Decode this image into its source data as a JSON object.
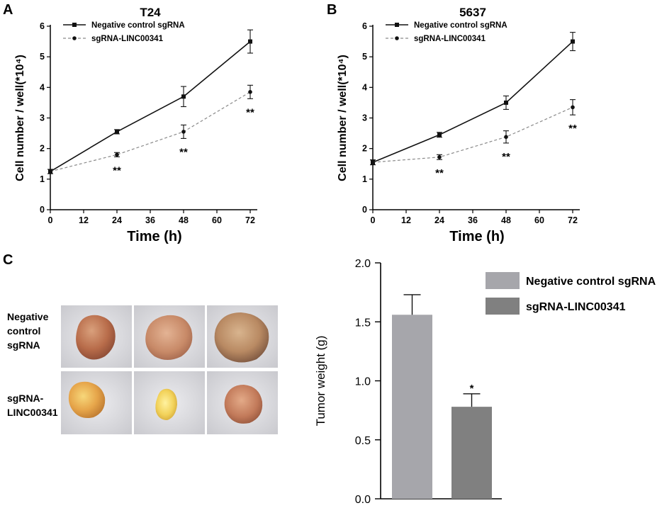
{
  "chart_data": [
    {
      "panel": "A",
      "type": "line",
      "title": "T24",
      "xlabel": "Time (h)",
      "ylabel": "Cell number / well(*10⁴)",
      "x": [
        0,
        24,
        48,
        72
      ],
      "xticks": [
        0,
        12,
        24,
        36,
        48,
        60,
        72
      ],
      "yticks": [
        0,
        1,
        2,
        3,
        4,
        5,
        6
      ],
      "xlim": [
        0,
        72
      ],
      "ylim": [
        0,
        6
      ],
      "series": [
        {
          "name": "Negative control sgRNA",
          "values": [
            1.25,
            2.55,
            3.7,
            5.5
          ],
          "errors": [
            0.07,
            0.07,
            0.33,
            0.38
          ],
          "style": "solid",
          "marker": "square"
        },
        {
          "name": "sgRNA-LINC00341",
          "values": [
            1.25,
            1.8,
            2.55,
            3.85
          ],
          "errors": [
            0.07,
            0.07,
            0.22,
            0.22
          ],
          "style": "dashed",
          "marker": "circle"
        }
      ],
      "annotations": [
        {
          "x": 24,
          "text": "**"
        },
        {
          "x": 48,
          "text": "**"
        },
        {
          "x": 72,
          "text": "**"
        }
      ]
    },
    {
      "panel": "B",
      "type": "line",
      "title": "5637",
      "xlabel": "Time (h)",
      "ylabel": "Cell number / well(*10⁴)",
      "x": [
        0,
        24,
        48,
        72
      ],
      "xticks": [
        0,
        12,
        24,
        36,
        48,
        60,
        72
      ],
      "yticks": [
        0,
        1,
        2,
        3,
        4,
        5,
        6
      ],
      "xlim": [
        0,
        72
      ],
      "ylim": [
        0,
        6
      ],
      "series": [
        {
          "name": "Negative control sgRNA",
          "values": [
            1.55,
            2.45,
            3.5,
            5.5
          ],
          "errors": [
            0.08,
            0.08,
            0.22,
            0.3
          ],
          "style": "solid",
          "marker": "square"
        },
        {
          "name": "sgRNA-LINC00341",
          "values": [
            1.55,
            1.72,
            2.38,
            3.35
          ],
          "errors": [
            0.08,
            0.08,
            0.2,
            0.25
          ],
          "style": "dashed",
          "marker": "circle"
        }
      ],
      "annotations": [
        {
          "x": 24,
          "text": "**"
        },
        {
          "x": 48,
          "text": "**"
        },
        {
          "x": 72,
          "text": "**"
        }
      ]
    },
    {
      "panel": "C",
      "type": "bar",
      "ylabel": "Tumor weight (g)",
      "categories": [
        "Negative control sgRNA",
        "sgRNA-LINC00341"
      ],
      "values": [
        1.56,
        0.78
      ],
      "errors": [
        0.17,
        0.11
      ],
      "colors": [
        "#a6a6ab",
        "#808080"
      ],
      "yticks": [
        "0.0",
        "0.5",
        "1.0",
        "1.5",
        "2.0"
      ],
      "ylim": [
        0,
        2
      ],
      "annotations": [
        {
          "category": "sgRNA-LINC00341",
          "text": "*"
        }
      ]
    }
  ],
  "panel_letters": {
    "a": "A",
    "b": "B",
    "c": "C"
  },
  "photos": {
    "row_labels": [
      [
        "Negative",
        "control",
        "sgRNA"
      ],
      [
        "sgRNA-",
        "LINC00341"
      ]
    ]
  }
}
